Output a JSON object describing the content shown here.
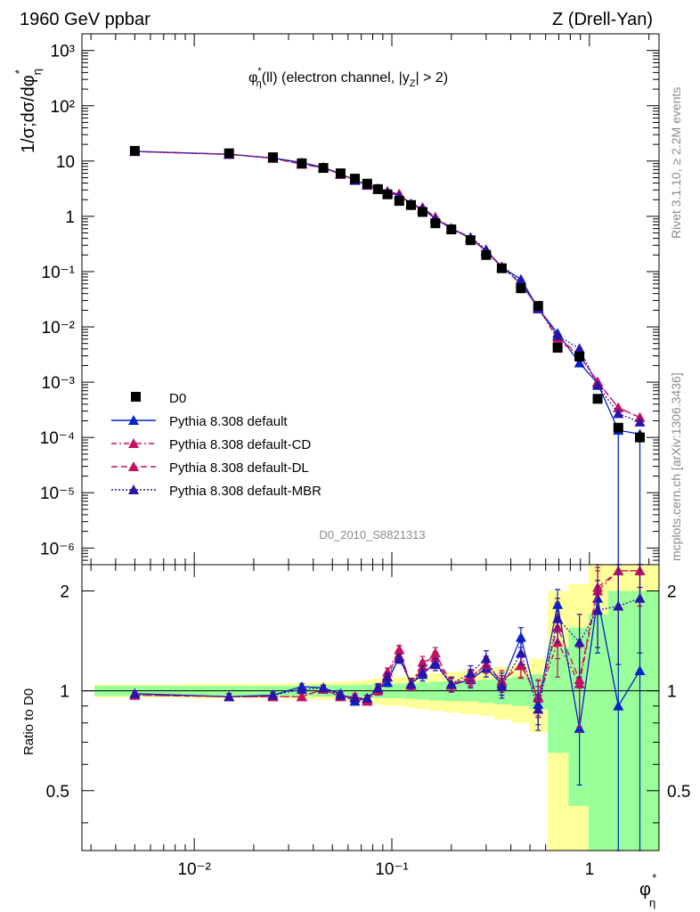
{
  "header": {
    "left": "1960 GeV ppbar",
    "right": "Z (Drell-Yan)"
  },
  "side_labels": {
    "rivet": "Rivet 3.1.10, ≥ 2.2M events",
    "mcplots": "mcplots.cern.ch [arXiv:1306.3436]"
  },
  "chart_data": {
    "type": "scatter",
    "title_main": "φ",
    "title_sub": "η",
    "title_sup": "*",
    "title_rest_a": "(ll) (electron channel, |y",
    "title_rest_sub": "Z",
    "title_rest_b": "| > 2)",
    "analysis_id": "D0_2010_S8821313",
    "ylabel_main": "1/σ;dσ/dφ",
    "ylabel_sub": "η",
    "ylabel_sup": "*",
    "xlabel_main": "φ",
    "xlabel_sub": "η",
    "xlabel_sup": "*",
    "ratio_ylabel": "Ratio to D0",
    "xscale": "log",
    "yscale": "log",
    "xlim": [
      0.0027,
      2.25
    ],
    "ylim": [
      5e-07,
      2000
    ],
    "ratio_ylim": [
      0.33,
      2.4
    ],
    "x_ticks": [
      "10⁻²",
      "10⁻¹",
      "1"
    ],
    "y_ticks": [
      "10³",
      "10²",
      "10",
      "1",
      "10⁻¹",
      "10⁻²",
      "10⁻³",
      "10⁻⁴",
      "10⁻⁵",
      "10⁻⁶"
    ],
    "ratio_ticks": [
      "2",
      "1",
      "0.5"
    ],
    "x": [
      0.005,
      0.015,
      0.025,
      0.035,
      0.045,
      0.055,
      0.065,
      0.075,
      0.085,
      0.095,
      0.109,
      0.125,
      0.143,
      0.166,
      0.2,
      0.25,
      0.3,
      0.36,
      0.45,
      0.55,
      0.69,
      0.89,
      1.1,
      1.4,
      1.8
    ],
    "data_series": {
      "name": "D0",
      "values": [
        15.3,
        13.8,
        11.7,
        9.1,
        7.5,
        6.0,
        4.8,
        3.9,
        3.1,
        2.5,
        1.9,
        1.6,
        1.2,
        0.75,
        0.58,
        0.37,
        0.2,
        0.115,
        0.05,
        0.024,
        0.0042,
        0.0029,
        0.0005,
        0.00015,
        0.0001
      ]
    },
    "band_inner_halfwidth": [
      0.035,
      0.035,
      0.035,
      0.035,
      0.04,
      0.04,
      0.04,
      0.045,
      0.05,
      0.05,
      0.05,
      0.055,
      0.06,
      0.065,
      0.07,
      0.07,
      0.08,
      0.09,
      0.1,
      0.12,
      0.35,
      0.55,
      0.7,
      1.0,
      1.0
    ],
    "band_outer_halfwidth": [
      0.045,
      0.05,
      0.05,
      0.055,
      0.06,
      0.065,
      0.07,
      0.08,
      0.09,
      0.1,
      0.1,
      0.11,
      0.12,
      0.13,
      0.14,
      0.15,
      0.16,
      0.18,
      0.2,
      0.25,
      1.0,
      1.1,
      1.4,
      1.6,
      1.6
    ],
    "series": [
      {
        "name": "Pythia 8.308 default",
        "color": "#0022cc",
        "dash": "",
        "ratio": [
          0.98,
          0.96,
          0.97,
          1.03,
          1.02,
          0.98,
          0.93,
          0.95,
          1.01,
          1.06,
          1.27,
          1.05,
          1.12,
          1.22,
          1.04,
          1.08,
          1.17,
          1.05,
          1.45,
          0.91,
          1.82,
          0.77,
          1.9,
          0.9,
          1.15
        ],
        "ratio_err": [
          0.02,
          0.02,
          0.02,
          0.02,
          0.02,
          0.02,
          0.02,
          0.02,
          0.03,
          0.03,
          0.04,
          0.04,
          0.05,
          0.05,
          0.05,
          0.06,
          0.07,
          0.08,
          0.1,
          0.12,
          0.2,
          0.25,
          0.6,
          0.9,
          0.9
        ]
      },
      {
        "name": "Pythia 8.308 default-CD",
        "color": "#c4105e",
        "dash": "6 3 2 3",
        "ratio": [
          0.97,
          0.96,
          0.96,
          0.96,
          1.01,
          0.96,
          0.96,
          0.93,
          1.02,
          1.14,
          1.33,
          1.04,
          1.22,
          1.26,
          1.04,
          1.09,
          1.2,
          1.07,
          1.2,
          0.95,
          1.4,
          1.05,
          2.0,
          2.3,
          2.3
        ],
        "ratio_err": [
          0.02,
          0.02,
          0.02,
          0.02,
          0.02,
          0.02,
          0.02,
          0.02,
          0.03,
          0.03,
          0.04,
          0.04,
          0.05,
          0.05,
          0.05,
          0.06,
          0.07,
          0.08,
          0.1,
          0.12,
          0.3,
          0.3,
          0.3,
          0.5,
          0.5
        ]
      },
      {
        "name": "Pythia 8.308 default-DL",
        "color": "#c4105e",
        "dash": "7 4",
        "ratio": [
          0.97,
          0.96,
          0.96,
          0.96,
          1.01,
          0.96,
          0.96,
          0.94,
          1.0,
          1.1,
          1.33,
          1.04,
          1.18,
          1.3,
          1.05,
          1.1,
          1.2,
          1.07,
          1.19,
          0.96,
          1.55,
          1.08,
          2.05,
          2.3,
          2.3
        ],
        "ratio_err": [
          0.02,
          0.02,
          0.02,
          0.02,
          0.02,
          0.02,
          0.02,
          0.02,
          0.03,
          0.03,
          0.04,
          0.04,
          0.05,
          0.05,
          0.05,
          0.06,
          0.07,
          0.08,
          0.1,
          0.12,
          0.3,
          0.3,
          0.3,
          0.5,
          0.5
        ]
      },
      {
        "name": "Pythia 8.308 default-MBR",
        "color": "#2a14a8",
        "dash": "2 2",
        "ratio": [
          0.98,
          0.96,
          0.97,
          1.01,
          1.02,
          0.97,
          0.95,
          0.95,
          1.02,
          1.1,
          1.25,
          1.05,
          1.14,
          1.2,
          1.05,
          1.13,
          1.25,
          1.03,
          1.3,
          0.88,
          1.65,
          1.4,
          1.75,
          1.8,
          1.9
        ],
        "ratio_err": [
          0.02,
          0.02,
          0.02,
          0.02,
          0.02,
          0.02,
          0.02,
          0.02,
          0.03,
          0.03,
          0.04,
          0.04,
          0.05,
          0.05,
          0.05,
          0.06,
          0.07,
          0.08,
          0.1,
          0.12,
          0.25,
          0.3,
          0.4,
          0.6,
          0.6
        ]
      }
    ],
    "legend_placement": "bottom-left of main panel"
  },
  "colors": {
    "band_inner": "#99ff99",
    "band_outer": "#ffff99",
    "data_marker": "#000000"
  }
}
